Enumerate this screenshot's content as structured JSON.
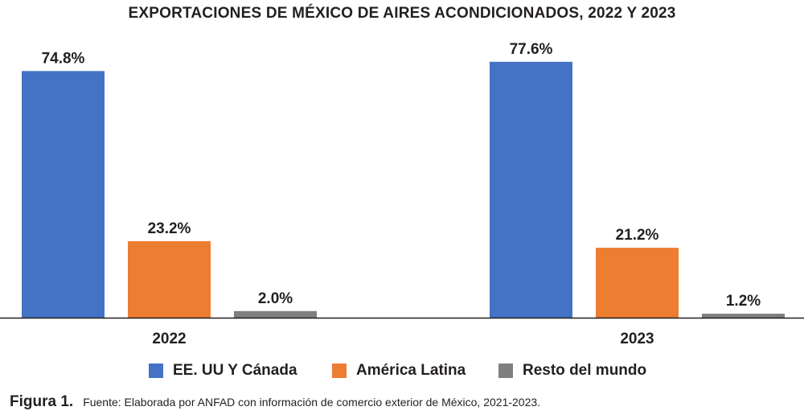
{
  "chart_data": {
    "type": "bar",
    "title": "EXPORTACIONES DE MÉXICO DE AIRES ACONDICIONADOS, 2022 Y 2023",
    "categories": [
      "2022",
      "2023"
    ],
    "series": [
      {
        "name": "EE. UU Y Cánada",
        "color": "#4472c4",
        "values": [
          74.8,
          77.6
        ],
        "labels": [
          "74.8%",
          "77.6%"
        ]
      },
      {
        "name": "América Latina",
        "color": "#ed7d31",
        "values": [
          23.2,
          21.2
        ],
        "labels": [
          "23.2%",
          "21.2%"
        ]
      },
      {
        "name": "Resto del mundo",
        "color": "#7f7f7f",
        "values": [
          2.0,
          1.2
        ],
        "labels": [
          "2.0%",
          "1.2%"
        ]
      }
    ],
    "ylim": [
      0,
      100
    ],
    "grid": false,
    "legend_position": "bottom"
  },
  "caption": {
    "figure_label": "Figura 1.",
    "source": "Fuente: Elaborada por ANFAD con información de comercio exterior de México, 2021-2023."
  }
}
